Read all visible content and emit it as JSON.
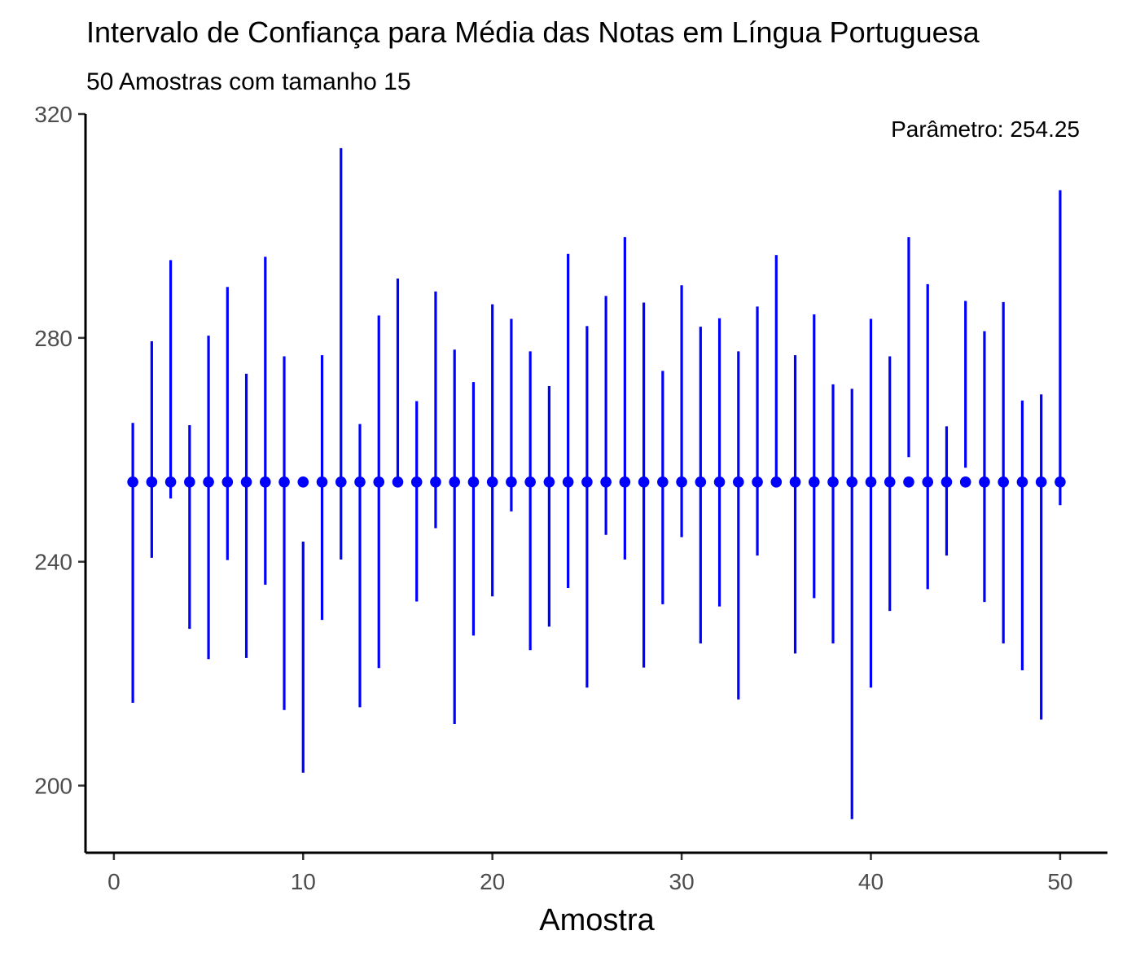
{
  "chart_data": {
    "type": "scatter",
    "title": "Intervalo de Confiança para Média das Notas em Língua Portuguesa",
    "subtitle": "50 Amostras com tamanho 15",
    "xlabel": "Amostra",
    "ylabel": "",
    "xlim": [
      -1.5,
      52.5
    ],
    "ylim": [
      188,
      320
    ],
    "x_ticks": [
      0,
      10,
      20,
      30,
      40,
      50
    ],
    "y_ticks": [
      200,
      240,
      280,
      320
    ],
    "annotation": "Parâmetro: 254.25",
    "parameter": 254.25,
    "color": "#0000ff",
    "grid": false,
    "x": [
      1,
      2,
      3,
      4,
      5,
      6,
      7,
      8,
      9,
      10,
      11,
      12,
      13,
      14,
      15,
      16,
      17,
      18,
      19,
      20,
      21,
      22,
      23,
      24,
      25,
      26,
      27,
      28,
      29,
      30,
      31,
      32,
      33,
      34,
      35,
      36,
      37,
      38,
      39,
      40,
      41,
      42,
      43,
      44,
      45,
      46,
      47,
      48,
      49,
      50
    ],
    "series": [
      {
        "values": [
          254.25,
          254.25,
          254.25,
          254.25,
          254.25,
          254.25,
          254.25,
          254.25,
          254.25,
          254.25,
          254.25,
          254.25,
          254.25,
          254.25,
          254.25,
          254.25,
          254.25,
          254.25,
          254.25,
          254.25,
          254.25,
          254.25,
          254.25,
          254.25,
          254.25,
          254.25,
          254.25,
          254.25,
          254.25,
          254.25,
          254.25,
          254.25,
          254.25,
          254.25,
          254.25,
          254.25,
          254.25,
          254.25,
          254.25,
          254.25,
          254.25,
          254.25,
          254.25,
          254.25,
          254.25,
          254.25,
          254.25,
          254.25,
          254.25,
          254.25
        ]
      }
    ],
    "intervals": {
      "lower": [
        214.8,
        240.7,
        251.3,
        228.0,
        222.6,
        240.3,
        222.8,
        235.9,
        213.5,
        202.3,
        229.6,
        240.4,
        214.0,
        221.0,
        254.1,
        232.9,
        246.0,
        211.0,
        226.8,
        233.8,
        249.0,
        224.2,
        228.4,
        235.3,
        217.5,
        244.8,
        240.4,
        221.1,
        232.4,
        244.4,
        225.4,
        232.0,
        215.4,
        241.1,
        254.1,
        223.6,
        233.5,
        225.4,
        194.0,
        217.5,
        231.2,
        258.7,
        235.1,
        241.1,
        256.8,
        232.8,
        225.4,
        220.6,
        211.8,
        250.1
      ],
      "upper": [
        264.8,
        279.4,
        293.9,
        264.4,
        280.4,
        289.1,
        273.6,
        294.5,
        276.7,
        243.6,
        276.9,
        313.9,
        264.6,
        284.0,
        290.6,
        268.7,
        288.3,
        277.9,
        272.1,
        286.0,
        283.4,
        277.6,
        271.4,
        295.0,
        282.1,
        287.5,
        298.0,
        286.3,
        274.1,
        289.4,
        282.0,
        283.5,
        277.6,
        285.6,
        294.8,
        276.9,
        284.2,
        271.7,
        270.9,
        283.4,
        276.7,
        298.0,
        289.6,
        264.2,
        286.6,
        281.2,
        286.4,
        268.8,
        269.9,
        306.4
      ]
    }
  }
}
